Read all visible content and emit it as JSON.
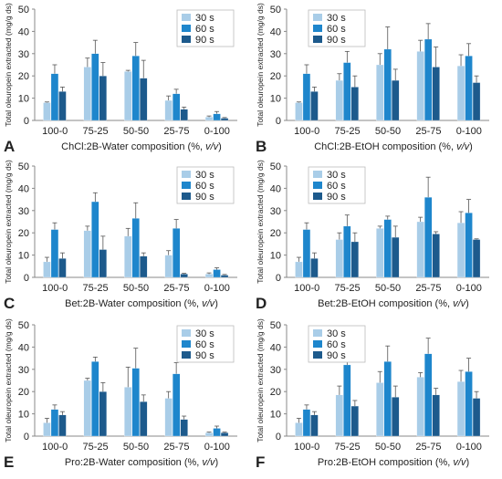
{
  "colors": {
    "30s": "#a9cde8",
    "60s": "#1e86cc",
    "90s": "#1d5a8c",
    "axis": "#888888",
    "error": "#555555"
  },
  "chart_data": [
    {
      "panel": "A",
      "type": "bar",
      "xlabel": "ChCl:2B-Water composition (%, v/v)",
      "ylabel": "Total oleuropein extracted (mg/g ds)",
      "ylim": [
        0,
        50
      ],
      "yticks": [
        0,
        10,
        20,
        30,
        40,
        50
      ],
      "legend_position": "top-right",
      "grid": false,
      "categories": [
        "100-0",
        "75-25",
        "50-50",
        "25-75",
        "0-100"
      ],
      "series": [
        {
          "name": "30 s",
          "values": [
            8,
            24,
            22,
            9,
            1.5
          ],
          "errors": [
            0.3,
            4,
            0.5,
            2,
            0.5
          ]
        },
        {
          "name": "60 s",
          "values": [
            21,
            30,
            29,
            12,
            3
          ],
          "errors": [
            4,
            6,
            6,
            2,
            1
          ]
        },
        {
          "name": "90 s",
          "values": [
            13,
            20,
            19,
            5,
            1
          ],
          "errors": [
            2,
            6,
            8,
            1,
            0.3
          ]
        }
      ]
    },
    {
      "panel": "B",
      "type": "bar",
      "xlabel": "ChCl:2B-EtOH composition (%, v/v)",
      "ylabel": "Total oleuropein extracted (mg/g ds)",
      "ylim": [
        0,
        50
      ],
      "yticks": [
        0,
        10,
        20,
        30,
        40,
        50
      ],
      "legend_position": "top-left",
      "grid": false,
      "categories": [
        "100-0",
        "75-25",
        "50-50",
        "25-75",
        "0-100"
      ],
      "series": [
        {
          "name": "30 s",
          "values": [
            8,
            18,
            25,
            31,
            24.5
          ],
          "errors": [
            0.3,
            3,
            5,
            5,
            5
          ]
        },
        {
          "name": "60 s",
          "values": [
            21,
            26,
            32,
            36.5,
            29
          ],
          "errors": [
            4,
            5,
            10,
            7,
            5.5
          ]
        },
        {
          "name": "90 s",
          "values": [
            13,
            15,
            18,
            24,
            17
          ],
          "errors": [
            2,
            5,
            5,
            9,
            3
          ]
        }
      ]
    },
    {
      "panel": "C",
      "type": "bar",
      "xlabel": "Bet:2B-Water composition (%, v/v)",
      "ylabel": "Total oleuropein extracted (mg/g ds)",
      "ylim": [
        0,
        50
      ],
      "yticks": [
        0,
        10,
        20,
        30,
        40,
        50
      ],
      "legend_position": "top-right",
      "grid": false,
      "categories": [
        "100-0",
        "75-25",
        "50-50",
        "25-75",
        "0-100"
      ],
      "series": [
        {
          "name": "30 s",
          "values": [
            7,
            21,
            18.5,
            10,
            1.5
          ],
          "errors": [
            2,
            2,
            3.5,
            2,
            0.5
          ]
        },
        {
          "name": "60 s",
          "values": [
            21.5,
            34,
            26.5,
            22,
            3.5
          ],
          "errors": [
            3,
            4,
            7,
            4,
            0.8
          ]
        },
        {
          "name": "90 s",
          "values": [
            8.5,
            12.5,
            9.5,
            1.5,
            1
          ],
          "errors": [
            2.5,
            6,
            1.5,
            0.3,
            0.3
          ]
        }
      ]
    },
    {
      "panel": "D",
      "type": "bar",
      "xlabel": "Bet:2B-EtOH composition (%, v/v)",
      "ylabel": "Total oleuropein extracted (mg/g ds)",
      "ylim": [
        0,
        50
      ],
      "yticks": [
        0,
        10,
        20,
        30,
        40,
        50
      ],
      "legend_position": "top-left",
      "grid": false,
      "categories": [
        "100-0",
        "75-25",
        "50-50",
        "25-75",
        "0-100"
      ],
      "series": [
        {
          "name": "30 s",
          "values": [
            7,
            17,
            22,
            25,
            24.5
          ],
          "errors": [
            2,
            3,
            1,
            2,
            5
          ]
        },
        {
          "name": "60 s",
          "values": [
            21.5,
            23,
            26,
            36,
            29
          ],
          "errors": [
            3,
            5,
            1.5,
            9,
            6
          ]
        },
        {
          "name": "90 s",
          "values": [
            8.5,
            16,
            18,
            19.5,
            17
          ],
          "errors": [
            2.5,
            4,
            5,
            1,
            0.3
          ]
        }
      ]
    },
    {
      "panel": "E",
      "type": "bar",
      "xlabel": "Pro:2B-Water composition (%, v/v)",
      "ylabel": "Total oleuropein extracted (mg/g ds)",
      "ylim": [
        0,
        50
      ],
      "yticks": [
        0,
        10,
        20,
        30,
        40,
        50
      ],
      "legend_position": "top-right",
      "grid": false,
      "categories": [
        "100-0",
        "75-25",
        "50-50",
        "25-75",
        "0-100"
      ],
      "series": [
        {
          "name": "30 s",
          "values": [
            6,
            25,
            22,
            17,
            1.5
          ],
          "errors": [
            2,
            1,
            9,
            3,
            0.3
          ]
        },
        {
          "name": "60 s",
          "values": [
            12,
            33.5,
            30.5,
            28,
            3.5
          ],
          "errors": [
            2,
            2,
            9,
            5,
            1
          ]
        },
        {
          "name": "90 s",
          "values": [
            9.5,
            20,
            15.5,
            7.5,
            1.5
          ],
          "errors": [
            1.5,
            4,
            3,
            1.5,
            0.3
          ]
        }
      ]
    },
    {
      "panel": "F",
      "type": "bar",
      "xlabel": "Pro:2B-EtOH composition (%, v/v)",
      "ylabel": "Total oleuropein extracted (mg/g ds)",
      "ylim": [
        0,
        50
      ],
      "yticks": [
        0,
        10,
        20,
        30,
        40,
        50
      ],
      "legend_position": "top-left",
      "grid": false,
      "categories": [
        "100-0",
        "75-25",
        "50-50",
        "25-75",
        "0-100"
      ],
      "series": [
        {
          "name": "30 s",
          "values": [
            6,
            18.5,
            24,
            26.5,
            24.5
          ],
          "errors": [
            2,
            4,
            5,
            2,
            5
          ]
        },
        {
          "name": "60 s",
          "values": [
            12,
            32,
            33.5,
            37,
            29
          ],
          "errors": [
            2,
            6,
            7,
            7,
            6
          ]
        },
        {
          "name": "90 s",
          "values": [
            9.5,
            13.5,
            17.5,
            18.5,
            17
          ],
          "errors": [
            1.5,
            2.5,
            5,
            3,
            3
          ]
        }
      ]
    }
  ]
}
